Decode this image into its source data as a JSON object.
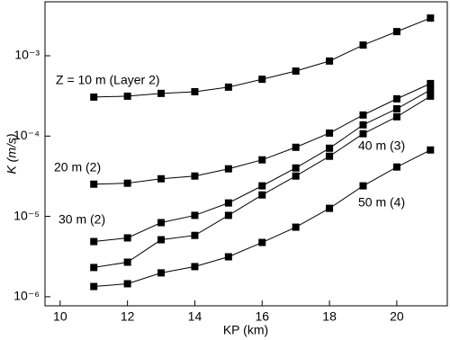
{
  "chart_data": {
    "type": "line",
    "x_label": "KP (km)",
    "y_label": "K (m/s)",
    "log_y": true,
    "x": [
      11,
      12,
      13,
      14,
      15,
      16,
      17,
      18,
      19,
      20,
      21
    ],
    "xlim": [
      9.55,
      21.5
    ],
    "xticks": [
      10,
      12,
      14,
      16,
      18,
      20
    ],
    "ylim": [
      7.7e-07,
      0.0047
    ],
    "yticks": [
      {
        "value": 1e-06,
        "label": "10⁻⁶"
      },
      {
        "value": 1e-05,
        "label": "10⁻⁵"
      },
      {
        "value": 0.0001,
        "label": "10⁻⁴"
      },
      {
        "value": 0.001,
        "label": "10⁻³"
      }
    ],
    "series": [
      {
        "name": "Z = 10 m (Layer 2)",
        "color": "#000000",
        "values": [
          0.000306,
          0.000314,
          0.00034,
          0.000357,
          0.000407,
          0.00051,
          0.000645,
          0.00086,
          0.00136,
          0.002,
          0.00295
        ]
      },
      {
        "name": "20 m (2)",
        "color": "#000000",
        "values": [
          2.52e-05,
          2.59e-05,
          2.94e-05,
          3.18e-05,
          3.91e-05,
          5.06e-05,
          7.25e-05,
          0.000109,
          0.000183,
          0.000291,
          0.000451
        ]
      },
      {
        "name": "30 m (2)",
        "color": "#000000",
        "values": [
          4.86e-06,
          5.4e-06,
          8.36e-06,
          1.03e-05,
          1.47e-05,
          2.4e-05,
          4.01e-05,
          7.06e-05,
          0.000138,
          0.000219,
          0.000376
        ]
      },
      {
        "name": "40 m (3)",
        "color": "#000000",
        "values": [
          2.31e-06,
          2.69e-06,
          5.12e-06,
          5.8e-06,
          1.03e-05,
          1.85e-05,
          3.18e-05,
          5.61e-05,
          0.000107,
          0.000174,
          0.000314
        ]
      },
      {
        "name": "50 m (4)",
        "color": "#000000",
        "values": [
          1.34e-06,
          1.45e-06,
          1.98e-06,
          2.37e-06,
          3.14e-06,
          4.74e-06,
          7.34e-06,
          1.26e-05,
          2.4e-05,
          4.12e-05,
          6.71e-05
        ]
      }
    ]
  }
}
